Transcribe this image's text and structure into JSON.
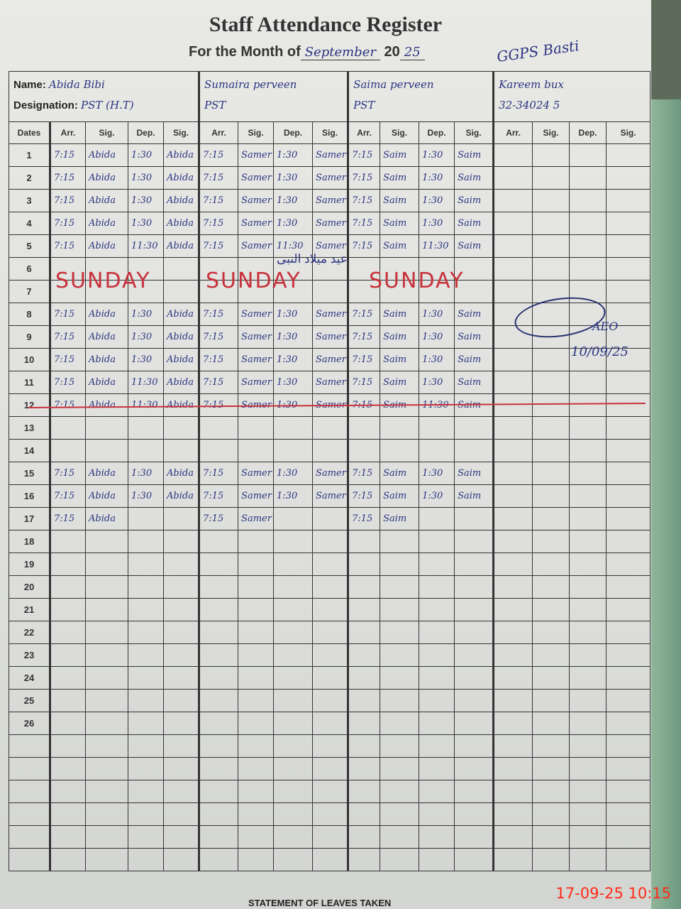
{
  "title": "Staff Attendance Register",
  "month_label": "For the Month of",
  "month_value": "September",
  "year_prefix": "20",
  "year_value": "25",
  "school": "GGPS Basti",
  "name_label": "Name:",
  "designation_label": "Designation:",
  "staff": [
    {
      "name": "Abida Bibi",
      "designation": "PST (H.T)"
    },
    {
      "name": "Sumaira perveen",
      "designation": "PST"
    },
    {
      "name": "Saima perveen",
      "designation": "PST"
    },
    {
      "name": "Kareem bux",
      "designation": "32-34024 5"
    }
  ],
  "column_headers": {
    "dates": "Dates",
    "arr": "Arr.",
    "sig": "Sig.",
    "dep": "Dep."
  },
  "rows": [
    {
      "date": "1",
      "cells": [
        "7:15",
        "Abida",
        "1:30",
        "Abida",
        "7:15",
        "Samer",
        "1:30",
        "Samer",
        "7:15",
        "Saim",
        "1:30",
        "Saim",
        "",
        "",
        "",
        ""
      ]
    },
    {
      "date": "2",
      "cells": [
        "7:15",
        "Abida",
        "1:30",
        "Abida",
        "7:15",
        "Samer",
        "1:30",
        "Samer",
        "7:15",
        "Saim",
        "1:30",
        "Saim",
        "",
        "",
        "",
        ""
      ]
    },
    {
      "date": "3",
      "cells": [
        "7:15",
        "Abida",
        "1:30",
        "Abida",
        "7:15",
        "Samer",
        "1:30",
        "Samer",
        "7:15",
        "Saim",
        "1:30",
        "Saim",
        "",
        "",
        "",
        ""
      ]
    },
    {
      "date": "4",
      "cells": [
        "7:15",
        "Abida",
        "1:30",
        "Abida",
        "7:15",
        "Samer",
        "1:30",
        "Samer",
        "7:15",
        "Saim",
        "1:30",
        "Saim",
        "",
        "",
        "",
        ""
      ]
    },
    {
      "date": "5",
      "cells": [
        "7:15",
        "Abida",
        "11:30",
        "Abida",
        "7:15",
        "Samer",
        "11:30",
        "Samer",
        "7:15",
        "Saim",
        "11:30",
        "Saim",
        "",
        "",
        "",
        ""
      ]
    },
    {
      "date": "6",
      "cells": [
        "",
        "",
        "",
        "",
        "",
        "",
        "",
        "",
        "",
        "",
        "",
        "",
        "",
        "",
        "",
        ""
      ]
    },
    {
      "date": "7",
      "cells": [
        "",
        "",
        "",
        "",
        "",
        "",
        "",
        "",
        "",
        "",
        "",
        "",
        "",
        "",
        "",
        ""
      ]
    },
    {
      "date": "8",
      "cells": [
        "7:15",
        "Abida",
        "1:30",
        "Abida",
        "7:15",
        "Samer",
        "1:30",
        "Samer",
        "7:15",
        "Saim",
        "1:30",
        "Saim",
        "",
        "",
        "",
        ""
      ]
    },
    {
      "date": "9",
      "cells": [
        "7:15",
        "Abida",
        "1:30",
        "Abida",
        "7:15",
        "Samer",
        "1:30",
        "Samer",
        "7:15",
        "Saim",
        "1:30",
        "Saim",
        "",
        "",
        "",
        ""
      ]
    },
    {
      "date": "10",
      "cells": [
        "7:15",
        "Abida",
        "1:30",
        "Abida",
        "7:15",
        "Samer",
        "1:30",
        "Samer",
        "7:15",
        "Saim",
        "1:30",
        "Saim",
        "",
        "",
        "",
        ""
      ]
    },
    {
      "date": "11",
      "cells": [
        "7:15",
        "Abida",
        "11:30",
        "Abida",
        "7:15",
        "Samer",
        "1:30",
        "Samer",
        "7:15",
        "Saim",
        "1:30",
        "Saim",
        "",
        "",
        "",
        ""
      ]
    },
    {
      "date": "12",
      "cells": [
        "7:15",
        "Abida",
        "11:30",
        "Abida",
        "7:15",
        "Samer",
        "1:30",
        "Samer",
        "7:15",
        "Saim",
        "11:30",
        "Saim",
        "",
        "",
        "",
        ""
      ]
    },
    {
      "date": "13",
      "cells": [
        "",
        "",
        "",
        "",
        "",
        "",
        "",
        "",
        "",
        "",
        "",
        "",
        "",
        "",
        "",
        ""
      ]
    },
    {
      "date": "14",
      "cells": [
        "",
        "",
        "",
        "",
        "",
        "",
        "",
        "",
        "",
        "",
        "",
        "",
        "",
        "",
        "",
        ""
      ]
    },
    {
      "date": "15",
      "cells": [
        "7:15",
        "Abida",
        "1:30",
        "Abida",
        "7:15",
        "Samer",
        "1:30",
        "Samer",
        "7:15",
        "Saim",
        "1:30",
        "Saim",
        "",
        "",
        "",
        ""
      ]
    },
    {
      "date": "16",
      "cells": [
        "7:15",
        "Abida",
        "1:30",
        "Abida",
        "7:15",
        "Samer",
        "1:30",
        "Samer",
        "7:15",
        "Saim",
        "1:30",
        "Saim",
        "",
        "",
        "",
        ""
      ]
    },
    {
      "date": "17",
      "cells": [
        "7:15",
        "Abida",
        "",
        "",
        "7:15",
        "Samer",
        "",
        "",
        "7:15",
        "Saim",
        "",
        "",
        "",
        "",
        "",
        ""
      ]
    },
    {
      "date": "18",
      "cells": [
        "",
        "",
        "",
        "",
        "",
        "",
        "",
        "",
        "",
        "",
        "",
        "",
        "",
        "",
        "",
        ""
      ]
    },
    {
      "date": "19",
      "cells": [
        "",
        "",
        "",
        "",
        "",
        "",
        "",
        "",
        "",
        "",
        "",
        "",
        "",
        "",
        "",
        ""
      ]
    },
    {
      "date": "20",
      "cells": [
        "",
        "",
        "",
        "",
        "",
        "",
        "",
        "",
        "",
        "",
        "",
        "",
        "",
        "",
        "",
        ""
      ]
    },
    {
      "date": "21",
      "cells": [
        "",
        "",
        "",
        "",
        "",
        "",
        "",
        "",
        "",
        "",
        "",
        "",
        "",
        "",
        "",
        ""
      ]
    },
    {
      "date": "22",
      "cells": [
        "",
        "",
        "",
        "",
        "",
        "",
        "",
        "",
        "",
        "",
        "",
        "",
        "",
        "",
        "",
        ""
      ]
    },
    {
      "date": "23",
      "cells": [
        "",
        "",
        "",
        "",
        "",
        "",
        "",
        "",
        "",
        "",
        "",
        "",
        "",
        "",
        "",
        ""
      ]
    },
    {
      "date": "24",
      "cells": [
        "",
        "",
        "",
        "",
        "",
        "",
        "",
        "",
        "",
        "",
        "",
        "",
        "",
        "",
        "",
        ""
      ]
    },
    {
      "date": "25",
      "cells": [
        "",
        "",
        "",
        "",
        "",
        "",
        "",
        "",
        "",
        "",
        "",
        "",
        "",
        "",
        "",
        ""
      ]
    },
    {
      "date": "26",
      "cells": [
        "",
        "",
        "",
        "",
        "",
        "",
        "",
        "",
        "",
        "",
        "",
        "",
        "",
        "",
        "",
        ""
      ]
    },
    {
      "date": "",
      "cells": [
        "",
        "",
        "",
        "",
        "",
        "",
        "",
        "",
        "",
        "",
        "",
        "",
        "",
        "",
        "",
        ""
      ]
    },
    {
      "date": "",
      "cells": [
        "",
        "",
        "",
        "",
        "",
        "",
        "",
        "",
        "",
        "",
        "",
        "",
        "",
        "",
        "",
        ""
      ]
    },
    {
      "date": "",
      "cells": [
        "",
        "",
        "",
        "",
        "",
        "",
        "",
        "",
        "",
        "",
        "",
        "",
        "",
        "",
        "",
        ""
      ]
    },
    {
      "date": "",
      "cells": [
        "",
        "",
        "",
        "",
        "",
        "",
        "",
        "",
        "",
        "",
        "",
        "",
        "",
        "",
        "",
        ""
      ]
    },
    {
      "date": "",
      "cells": [
        "",
        "",
        "",
        "",
        "",
        "",
        "",
        "",
        "",
        "",
        "",
        "",
        "",
        "",
        "",
        ""
      ]
    },
    {
      "date": "",
      "cells": [
        "",
        "",
        "",
        "",
        "",
        "",
        "",
        "",
        "",
        "",
        "",
        "",
        "",
        "",
        "",
        ""
      ]
    }
  ],
  "sunday_label": "SUNDAY",
  "holiday_note": "عید میلاد النبی",
  "officer_signature": {
    "title": "AEO",
    "date": "10/09/25"
  },
  "footer": "STATEMENT OF LEAVES TAKEN",
  "photo_timestamp": "17-09-25  10:15",
  "colors": {
    "ink": "#2b3580",
    "red_ink": "#c8323c",
    "timestamp": "#ff2a1a"
  }
}
